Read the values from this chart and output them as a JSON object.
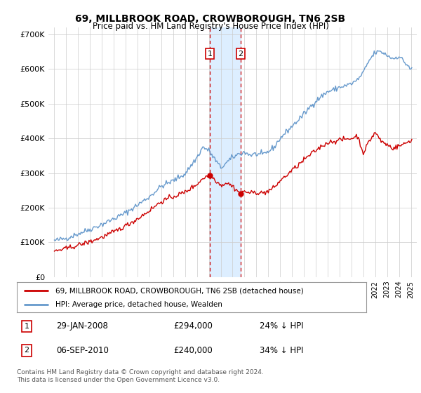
{
  "title": "69, MILLBROOK ROAD, CROWBOROUGH, TN6 2SB",
  "subtitle": "Price paid vs. HM Land Registry's House Price Index (HPI)",
  "hpi_label": "HPI: Average price, detached house, Wealden",
  "property_label": "69, MILLBROOK ROAD, CROWBOROUGH, TN6 2SB (detached house)",
  "footer": "Contains HM Land Registry data © Crown copyright and database right 2024.\nThis data is licensed under the Open Government Licence v3.0.",
  "sale1_label": "29-JAN-2008",
  "sale1_price": "£294,000",
  "sale1_hpi": "24% ↓ HPI",
  "sale2_label": "06-SEP-2010",
  "sale2_price": "£240,000",
  "sale2_hpi": "34% ↓ HPI",
  "sale1_date": 2008.08,
  "sale2_date": 2010.68,
  "sale1_value": 294000,
  "sale2_value": 240000,
  "hpi_color": "#6699cc",
  "property_color": "#cc0000",
  "shaded_color": "#ddeeff",
  "dashed_color": "#cc0000",
  "background_color": "#ffffff",
  "grid_color": "#cccccc",
  "ylim": [
    0,
    720000
  ],
  "yticks": [
    0,
    100000,
    200000,
    300000,
    400000,
    500000,
    600000,
    700000
  ],
  "ytick_labels": [
    "£0",
    "£100K",
    "£200K",
    "£300K",
    "£400K",
    "£500K",
    "£600K",
    "£700K"
  ],
  "xlim_min": 1994.5,
  "xlim_max": 2025.5,
  "hpi_anchors_t": [
    1995.0,
    1996.0,
    1997.0,
    1998.0,
    1999.0,
    2000.0,
    2001.0,
    2002.0,
    2003.0,
    2004.0,
    2005.0,
    2006.0,
    2007.0,
    2007.5,
    2008.0,
    2008.5,
    2009.0,
    2009.5,
    2010.0,
    2010.5,
    2011.0,
    2011.5,
    2012.0,
    2012.5,
    2013.0,
    2013.5,
    2014.0,
    2014.5,
    2015.0,
    2015.5,
    2016.0,
    2016.5,
    2017.0,
    2017.5,
    2018.0,
    2018.5,
    2019.0,
    2019.5,
    2020.0,
    2020.5,
    2021.0,
    2021.5,
    2022.0,
    2022.5,
    2023.0,
    2023.5,
    2024.0,
    2024.5,
    2024.83,
    2025.0
  ],
  "hpi_anchors_v": [
    105000,
    112000,
    125000,
    138000,
    152000,
    168000,
    185000,
    208000,
    232000,
    262000,
    278000,
    298000,
    345000,
    375000,
    365000,
    340000,
    315000,
    330000,
    345000,
    355000,
    360000,
    352000,
    355000,
    352000,
    362000,
    375000,
    400000,
    418000,
    435000,
    452000,
    470000,
    490000,
    508000,
    522000,
    535000,
    540000,
    548000,
    552000,
    558000,
    568000,
    590000,
    625000,
    648000,
    650000,
    640000,
    630000,
    638000,
    618000,
    608000,
    598000
  ],
  "prop_anchors_t": [
    1995.0,
    1996.0,
    1997.0,
    1998.0,
    1999.0,
    2000.0,
    2001.0,
    2002.0,
    2003.0,
    2004.0,
    2005.0,
    2006.0,
    2007.0,
    2007.5,
    2008.08,
    2008.5,
    2009.0,
    2009.5,
    2010.0,
    2010.68,
    2011.0,
    2011.5,
    2012.0,
    2012.5,
    2013.0,
    2013.5,
    2014.0,
    2014.5,
    2015.0,
    2015.5,
    2016.0,
    2016.5,
    2017.0,
    2017.5,
    2018.0,
    2018.5,
    2019.0,
    2019.5,
    2020.0,
    2020.5,
    2021.0,
    2021.5,
    2022.0,
    2022.25,
    2022.5,
    2023.0,
    2023.5,
    2024.0,
    2024.5,
    2025.0
  ],
  "prop_anchors_v": [
    75000,
    82000,
    92000,
    102000,
    115000,
    130000,
    148000,
    168000,
    192000,
    218000,
    232000,
    245000,
    268000,
    285000,
    294000,
    282000,
    265000,
    272000,
    262000,
    240000,
    248000,
    242000,
    245000,
    242000,
    248000,
    258000,
    278000,
    292000,
    308000,
    322000,
    338000,
    352000,
    365000,
    378000,
    388000,
    392000,
    395000,
    398000,
    400000,
    408000,
    358000,
    392000,
    418000,
    405000,
    392000,
    382000,
    372000,
    378000,
    385000,
    395000
  ]
}
